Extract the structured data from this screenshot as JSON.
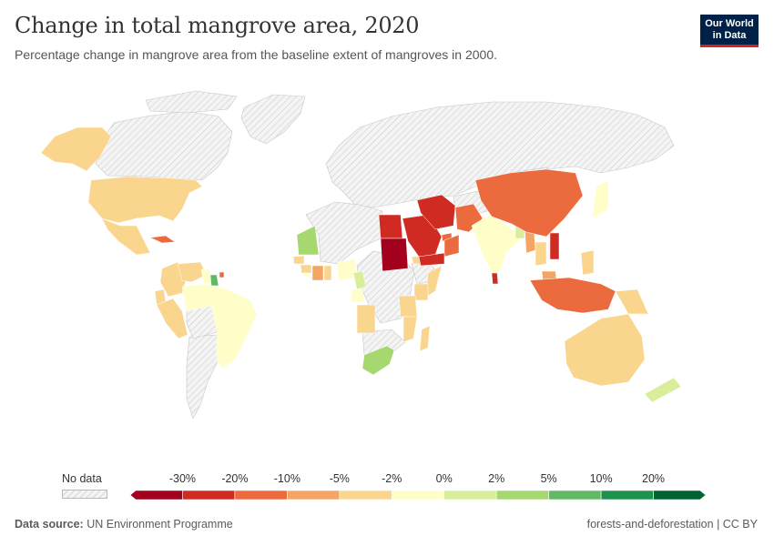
{
  "header": {
    "title": "Change in total mangrove area, 2020",
    "subtitle": "Percentage change in mangrove area from the baseline extent of mangroves in 2000.",
    "logo_line1": "Our World",
    "logo_line2": "in Data"
  },
  "legend": {
    "no_data_label": "No data",
    "ticks": [
      "-30%",
      "-20%",
      "-10%",
      "-5%",
      "-2%",
      "0%",
      "2%",
      "5%",
      "10%",
      "20%"
    ],
    "colors": [
      "#a2001c",
      "#cf2b23",
      "#ec6b3e",
      "#f5a563",
      "#fad58e",
      "#fffdc8",
      "#d9ed9a",
      "#a6d870",
      "#61b965",
      "#1c924c",
      "#006432"
    ],
    "no_data_color": "#e8e8e8"
  },
  "footer": {
    "source_label": "Data source:",
    "source_value": "UN Environment Programme",
    "right_text": "forests-and-deforestation | CC BY"
  },
  "countries": [
    {
      "name": "Alaska (USA)",
      "color": "#fad58e"
    },
    {
      "name": "United States",
      "color": "#fad58e"
    },
    {
      "name": "Mexico",
      "color": "#fad58e"
    },
    {
      "name": "Cuba",
      "color": "#ec6b3e"
    },
    {
      "name": "Colombia",
      "color": "#fad58e"
    },
    {
      "name": "Venezuela",
      "color": "#fad58e"
    },
    {
      "name": "Guyana",
      "color": "#fffdc8"
    },
    {
      "name": "Suriname",
      "color": "#61b965"
    },
    {
      "name": "French Guiana",
      "color": "#ec6b3e"
    },
    {
      "name": "Ecuador",
      "color": "#fad58e"
    },
    {
      "name": "Peru",
      "color": "#fad58e"
    },
    {
      "name": "Brazil",
      "color": "#fffdc8"
    },
    {
      "name": "Mauritania",
      "color": "#a6d870"
    },
    {
      "name": "Senegal",
      "color": "#fad58e"
    },
    {
      "name": "Guinea",
      "color": "#fad58e"
    },
    {
      "name": "Sierra Leone",
      "color": "#fffdc8"
    },
    {
      "name": "Ivory Coast",
      "color": "#f5a563"
    },
    {
      "name": "Ghana",
      "color": "#fad58e"
    },
    {
      "name": "Nigeria",
      "color": "#fffdc8"
    },
    {
      "name": "Cameroon",
      "color": "#d9ed9a"
    },
    {
      "name": "Gabon",
      "color": "#fffdc8"
    },
    {
      "name": "Angola",
      "color": "#fad58e"
    },
    {
      "name": "Egypt",
      "color": "#cf2b23"
    },
    {
      "name": "Sudan",
      "color": "#a2001c"
    },
    {
      "name": "Eritrea",
      "color": "#fad58e"
    },
    {
      "name": "Somalia",
      "color": "#fad58e"
    },
    {
      "name": "Kenya",
      "color": "#fad58e"
    },
    {
      "name": "Tanzania",
      "color": "#fad58e"
    },
    {
      "name": "Mozambique",
      "color": "#fad58e"
    },
    {
      "name": "Madagascar",
      "color": "#fad58e"
    },
    {
      "name": "South Africa",
      "color": "#a6d870"
    },
    {
      "name": "Saudi Arabia",
      "color": "#cf2b23"
    },
    {
      "name": "Iran",
      "color": "#cf2b23"
    },
    {
      "name": "Yemen",
      "color": "#ec6b3e"
    },
    {
      "name": "Oman",
      "color": "#ec6b3e"
    },
    {
      "name": "UAE",
      "color": "#cf2b23"
    },
    {
      "name": "Pakistan",
      "color": "#ec6b3e"
    },
    {
      "name": "India",
      "color": "#fffdc8"
    },
    {
      "name": "Sri Lanka",
      "color": "#cf2b23"
    },
    {
      "name": "Bangladesh",
      "color": "#d9ed9a"
    },
    {
      "name": "Myanmar",
      "color": "#f5a563"
    },
    {
      "name": "Thailand",
      "color": "#fad58e"
    },
    {
      "name": "Vietnam",
      "color": "#cf2b23"
    },
    {
      "name": "China",
      "color": "#ec6b3e"
    },
    {
      "name": "Japan",
      "color": "#fffdc8"
    },
    {
      "name": "Philippines",
      "color": "#fad58e"
    },
    {
      "name": "Malaysia",
      "color": "#f5a563"
    },
    {
      "name": "Indonesia",
      "color": "#ec6b3e"
    },
    {
      "name": "Papua New Guinea",
      "color": "#fad58e"
    },
    {
      "name": "Australia",
      "color": "#fad58e"
    },
    {
      "name": "New Zealand",
      "color": "#d9ed9a"
    }
  ]
}
